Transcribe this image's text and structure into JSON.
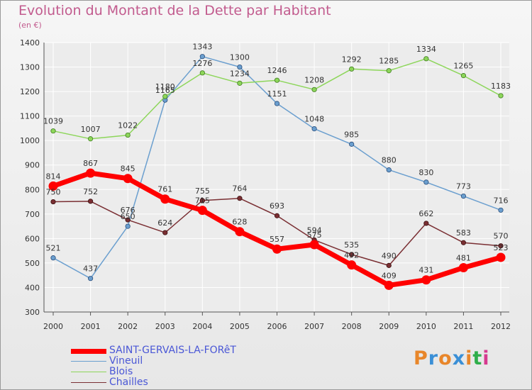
{
  "header": {
    "title": "Evolution du Montant de la Dette par Habitant",
    "subtitle": "(en €)"
  },
  "logo": {
    "text": "Proxiti"
  },
  "colors": {
    "title": "#c25b8e",
    "grid": "#ffffff",
    "axis": "#555555",
    "legend_text": "#4a57d6"
  },
  "chart_data": {
    "type": "line",
    "title": "Evolution du Montant de la Dette par Habitant",
    "subtitle": "(en €)",
    "xlabel": "",
    "ylabel": "",
    "x": [
      "2000",
      "2001",
      "2002",
      "2003",
      "2004",
      "2005",
      "2006",
      "2007",
      "2008",
      "2009",
      "2010",
      "2011",
      "2012"
    ],
    "ylim": [
      300,
      1400
    ],
    "yticks": [
      "300",
      "400",
      "500",
      "600",
      "700",
      "800",
      "900",
      "1000",
      "1100",
      "1200",
      "1300",
      "1400"
    ],
    "grid": true,
    "legend_position": "bottom-left",
    "series": [
      {
        "name": "SAINT-GERVAIS-LA-FORêT",
        "color": "#ff0000",
        "values": [
          814,
          867,
          845,
          761,
          715,
          628,
          557,
          575,
          492,
          409,
          431,
          481,
          523
        ],
        "labels": [
          "814",
          "867",
          "845",
          "761",
          "715",
          "628",
          "557",
          "575",
          "492",
          "409",
          "431",
          "481",
          "523"
        ]
      },
      {
        "name": "Vineuil",
        "color": "#6b9fcf",
        "values": [
          521,
          437,
          650,
          1165,
          1343,
          1300,
          1151,
          1048,
          985,
          880,
          830,
          773,
          716
        ],
        "labels": [
          "521",
          "437",
          "650",
          "1165",
          "1343",
          "1300",
          "1151",
          "1048",
          "985",
          "880",
          "830",
          "773",
          "716"
        ]
      },
      {
        "name": "Blois",
        "color": "#8dd65a",
        "values": [
          1039,
          1007,
          1022,
          1180,
          1276,
          1234,
          1246,
          1208,
          1292,
          1285,
          1334,
          1265,
          1183
        ],
        "labels": [
          "1039",
          "1007",
          "1022",
          "1180",
          "1276",
          "1234",
          "1246",
          "1208",
          "1292",
          "1285",
          "1334",
          "1265",
          "1183"
        ]
      },
      {
        "name": "Chailles",
        "color": "#7a2f33",
        "values": [
          750,
          752,
          676,
          624,
          755,
          764,
          693,
          594,
          535,
          490,
          662,
          583,
          570
        ],
        "labels": [
          "750",
          "752",
          "676",
          "624",
          "755",
          "764",
          "693",
          "594",
          "535",
          "490",
          "662",
          "583",
          "570"
        ]
      }
    ]
  }
}
